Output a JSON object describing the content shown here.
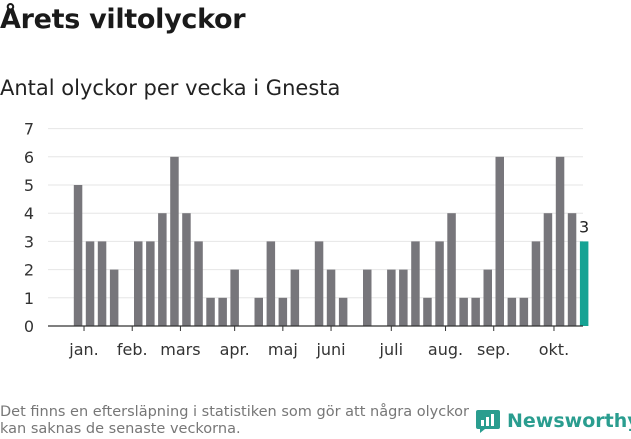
{
  "header": {
    "title": "Årets viltolyckor",
    "subtitle": "Antal olyckor per vecka i Gnesta"
  },
  "footer": {
    "note": "Det finns en eftersläpning i statistiken som gör att några olyckor kan saknas de senaste veckorna.",
    "brand": "Newsworthy"
  },
  "colors": {
    "bar": "#77767b",
    "highlight": "#16a394",
    "brand": "#2a9d8f"
  },
  "chart_data": {
    "type": "bar",
    "title": "Antal olyckor per vecka i Gnesta",
    "xlabel": "",
    "ylabel": "",
    "ylim": [
      0,
      7
    ],
    "yticks": [
      0,
      1,
      2,
      3,
      4,
      5,
      6,
      7
    ],
    "grid": true,
    "weeks": [
      1,
      2,
      3,
      4,
      5,
      6,
      7,
      8,
      9,
      10,
      11,
      12,
      13,
      14,
      15,
      16,
      17,
      18,
      19,
      20,
      21,
      22,
      23,
      24,
      25,
      26,
      27,
      28,
      29,
      30,
      31,
      32,
      33,
      34,
      35,
      36,
      37,
      38,
      39,
      40,
      41,
      42,
      43
    ],
    "values": [
      5,
      3,
      3,
      2,
      0,
      3,
      3,
      4,
      6,
      4,
      3,
      1,
      1,
      2,
      0,
      1,
      3,
      1,
      2,
      0,
      3,
      2,
      1,
      0,
      2,
      0,
      2,
      2,
      3,
      1,
      3,
      4,
      1,
      1,
      2,
      6,
      1,
      1,
      3,
      4,
      6,
      4,
      3
    ],
    "month_labels": [
      {
        "label": "jan.",
        "week": 1.5
      },
      {
        "label": "feb.",
        "week": 5.5
      },
      {
        "label": "mars",
        "week": 9.5
      },
      {
        "label": "apr.",
        "week": 14
      },
      {
        "label": "maj",
        "week": 18
      },
      {
        "label": "juni",
        "week": 22
      },
      {
        "label": "juli",
        "week": 27
      },
      {
        "label": "aug.",
        "week": 31.5
      },
      {
        "label": "sep.",
        "week": 35.5
      },
      {
        "label": "okt.",
        "week": 40.5
      }
    ],
    "highlight": {
      "week": 43,
      "label": "3"
    }
  }
}
